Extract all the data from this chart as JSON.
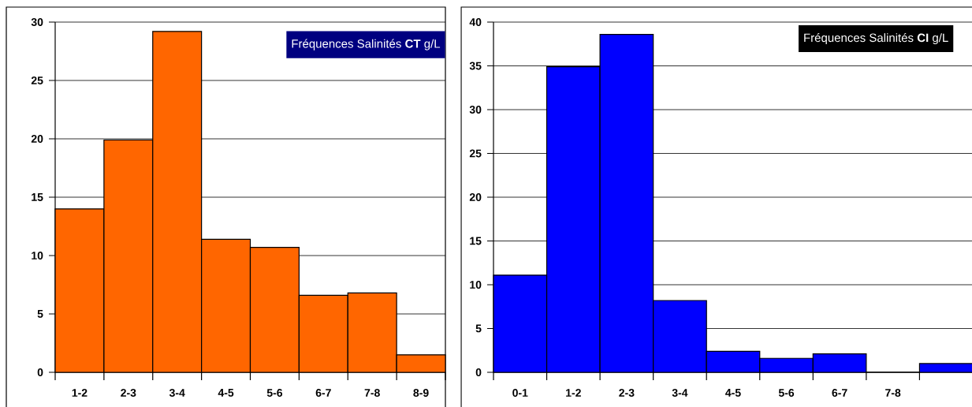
{
  "chart_data": [
    {
      "type": "bar",
      "title": "Fréquences Salinités **CT** g/L",
      "categories": [
        "1-2",
        "2-3",
        "3-4",
        "4-5",
        "5-6",
        "6-7",
        "7-8",
        "8-9"
      ],
      "values": [
        14.0,
        19.9,
        29.2,
        11.4,
        10.7,
        6.6,
        6.8,
        1.5
      ],
      "color": "#ff6600",
      "ylim": [
        0,
        30
      ],
      "yticks": [
        0,
        5,
        10,
        15,
        20,
        25,
        30
      ],
      "grid": "y"
    },
    {
      "type": "bar",
      "title": "Fréquences Salinités **CI** g/L",
      "categories": [
        "0-1",
        "1-2",
        "2-3",
        "3-4",
        "4-5",
        "5-6",
        "6-7",
        "7-8",
        null
      ],
      "values": [
        11.1,
        34.9,
        38.6,
        8.2,
        2.4,
        1.6,
        2.1,
        0,
        1.0
      ],
      "color": "#0000ff",
      "ylim": [
        0,
        40
      ],
      "yticks": [
        0,
        5,
        10,
        15,
        20,
        25,
        30,
        35,
        40
      ],
      "grid": "y"
    }
  ]
}
